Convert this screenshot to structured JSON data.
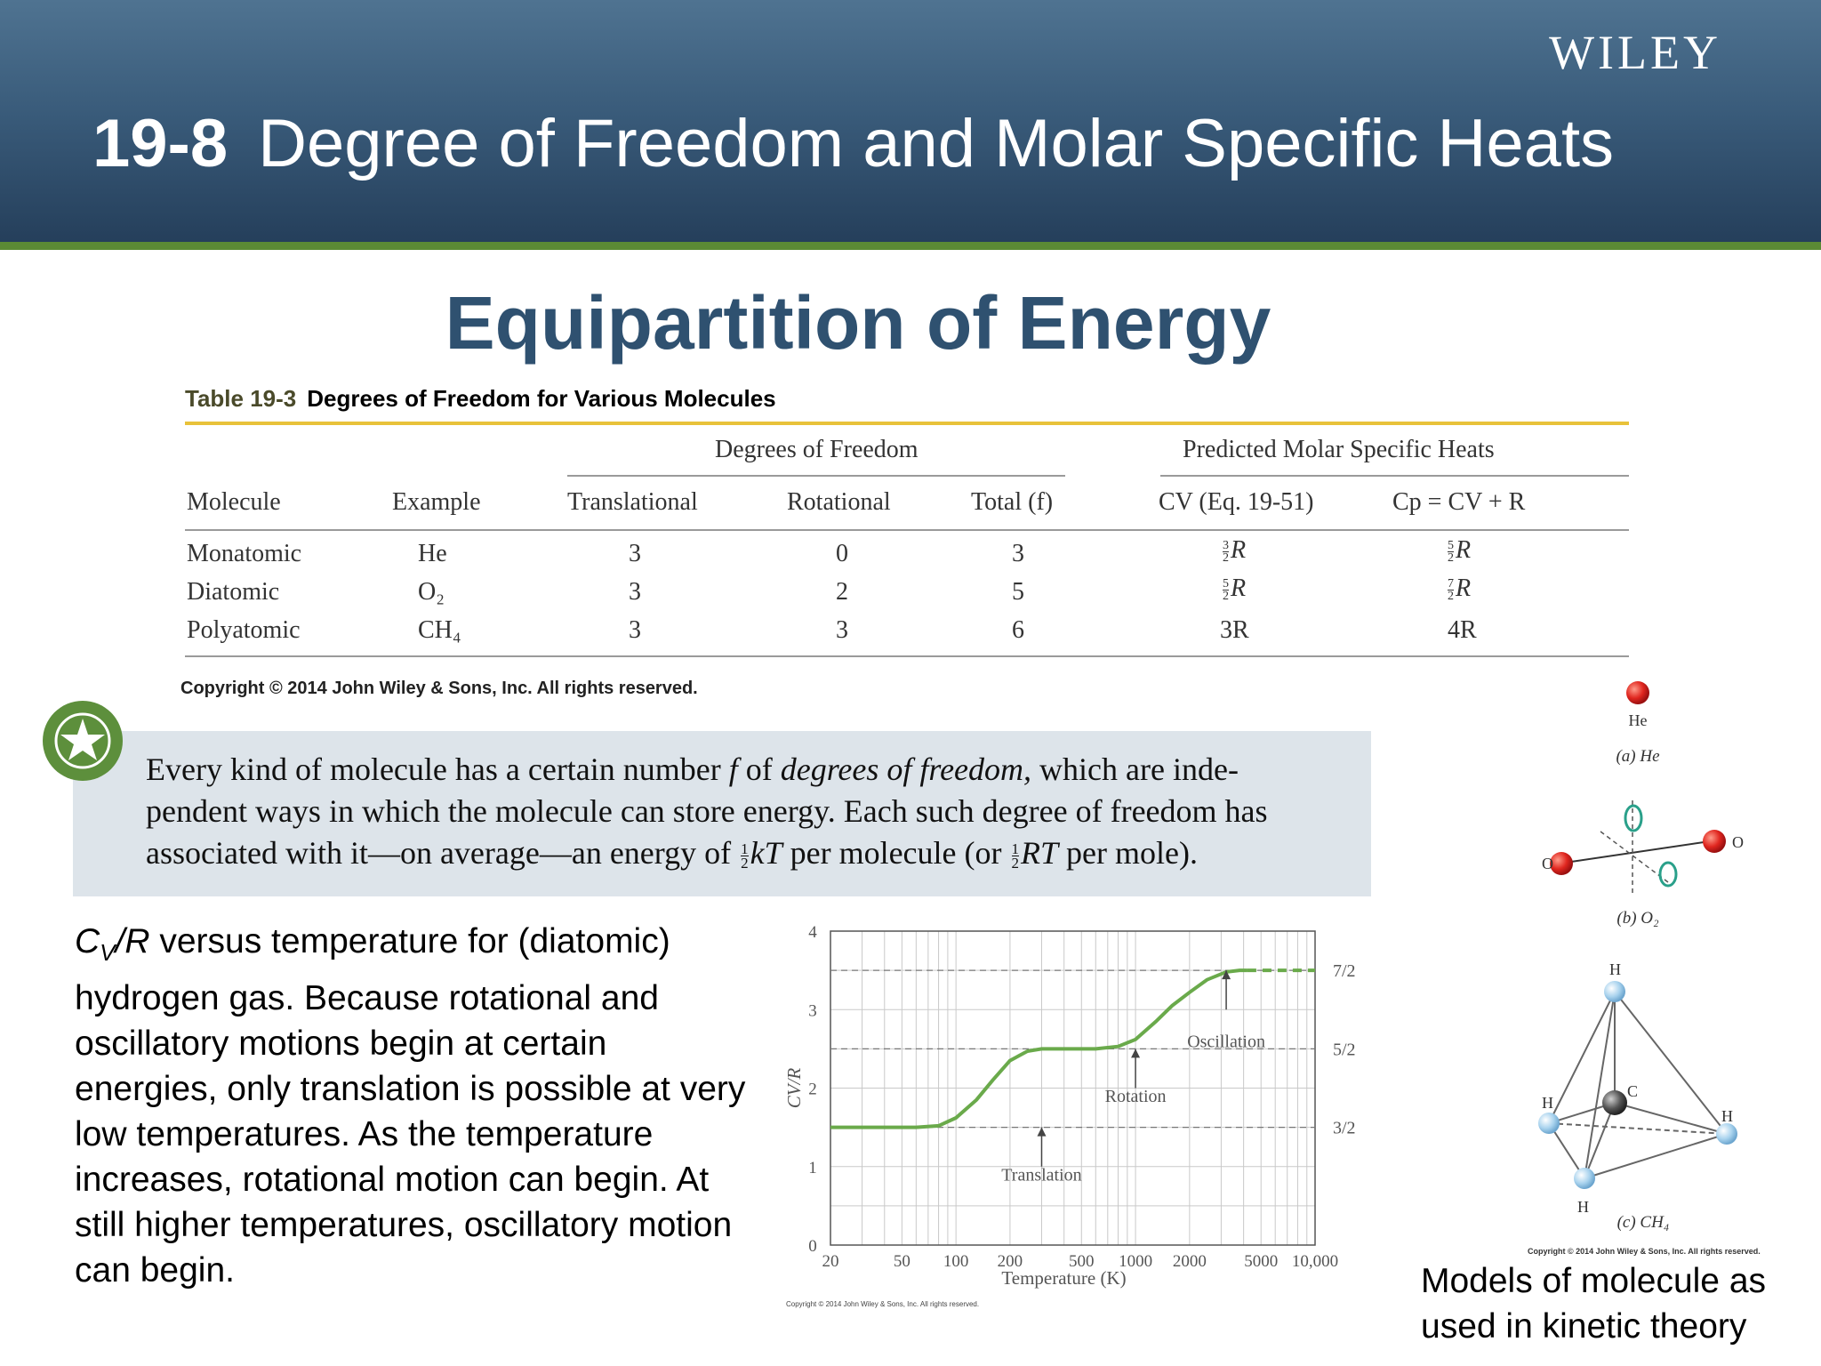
{
  "header": {
    "brand": "WILEY",
    "section_number": "19-8",
    "section_title": "Degree of Freedom and Molar Specific Heats",
    "background_color": "#3a5c7b",
    "stripe_color": "#5b8a35"
  },
  "slide_title": "Equipartition of Energy",
  "table": {
    "label": "Table 19-3",
    "title": "Degrees of Freedom for Various Molecules",
    "group_headers": {
      "degrees_of_freedom": "Degrees of Freedom",
      "predicted": "Predicted Molar Specific Heats"
    },
    "columns": {
      "molecule": "Molecule",
      "example": "Example",
      "translational": "Translational",
      "rotational": "Rotational",
      "total": "Total (f)",
      "cv": "CV (Eq. 19-51)",
      "cp": "Cp = CV + R"
    },
    "rows": [
      {
        "molecule": "Monatomic",
        "example": "He",
        "translational": "3",
        "rotational": "0",
        "total": "3",
        "cv_num": "3",
        "cv_den": "2",
        "cv_tail": "R",
        "cp_num": "5",
        "cp_den": "2",
        "cp_tail": "R"
      },
      {
        "molecule": "Diatomic",
        "example": "O₂",
        "translational": "3",
        "rotational": "2",
        "total": "5",
        "cv_num": "5",
        "cv_den": "2",
        "cv_tail": "R",
        "cp_num": "7",
        "cp_den": "2",
        "cp_tail": "R"
      },
      {
        "molecule": "Polyatomic",
        "example": "CH₄",
        "translational": "3",
        "rotational": "3",
        "total": "6",
        "cv_value": "3R",
        "cp_value": "4R"
      }
    ],
    "copyright": "Copyright © 2014 John Wiley & Sons, Inc. All rights reserved."
  },
  "definition": {
    "line1_a": "Every kind of molecule has a certain number ",
    "line1_f": "f",
    "line1_b": " of ",
    "line1_em": "degrees of freedom,",
    "line1_c": " which are inde-",
    "line2": "pendent ways in which the molecule can store energy. Each such degree of freedom has",
    "line3_a": "associated with it—on average—an energy of ",
    "line3_kt": "kT",
    "line3_b": " per molecule (or ",
    "line3_rt": "RT",
    "line3_c": " per mole).",
    "half_num": "1",
    "half_den": "2"
  },
  "left_caption": {
    "cv": "C",
    "cv_sub": "V",
    "r": "/R",
    "text": " versus temperature for (diatomic) hydrogen gas. Because rotational and oscillatory motions begin at certain energies, only translation is possible at very low temperatures. As the temperature increases, rotational motion can begin. At still higher temperatures, oscillatory motion can begin."
  },
  "chart_data": {
    "type": "line",
    "x_scale": "log",
    "xlim": [
      20,
      10000
    ],
    "ylim": [
      0,
      4
    ],
    "grid": true,
    "x_ticks": [
      "20",
      "50",
      "100",
      "200",
      "500",
      "1000",
      "2000",
      "5000",
      "10,000"
    ],
    "y_ticks": [
      "0",
      "1",
      "2",
      "3",
      "4"
    ],
    "xlabel": "Temperature (K)",
    "ylabel": "CV/R",
    "right_labels": [
      "3/2",
      "5/2",
      "7/2"
    ],
    "annotations": [
      "Translation",
      "Rotation",
      "Oscillation"
    ],
    "line_color": "#6aaa4b",
    "series": [
      {
        "x": [
          20,
          40,
          60,
          80,
          100,
          130,
          160,
          200,
          250,
          300,
          400,
          600,
          800,
          1000,
          1300,
          1600,
          2000,
          2500,
          3200,
          3800,
          4200
        ],
        "y": [
          1.5,
          1.5,
          1.5,
          1.52,
          1.62,
          1.85,
          2.1,
          2.35,
          2.47,
          2.5,
          2.5,
          2.5,
          2.53,
          2.62,
          2.85,
          3.05,
          3.22,
          3.38,
          3.48,
          3.5,
          3.5
        ]
      },
      {
        "x": [
          4200,
          10000
        ],
        "y": [
          3.5,
          3.5
        ],
        "dashed": true
      }
    ],
    "copyright": "Copyright © 2014 John Wiley & Sons, Inc. All rights reserved."
  },
  "molecules": {
    "he_label": "He",
    "he_caption": "(a) He",
    "o_label": "O",
    "o2_caption": "(b) O₂",
    "h_label": "H",
    "c_label": "C",
    "ch4_caption": "(c) CH₄",
    "copyright": "Copyright © 2014 John Wiley & Sons, Inc. All rights reserved.",
    "oxygen_color": "#e0261f",
    "hydrogen_color": "#a9d3ee",
    "carbon_color": "#555555"
  },
  "right_caption": "Models of molecule as used in kinetic theory"
}
